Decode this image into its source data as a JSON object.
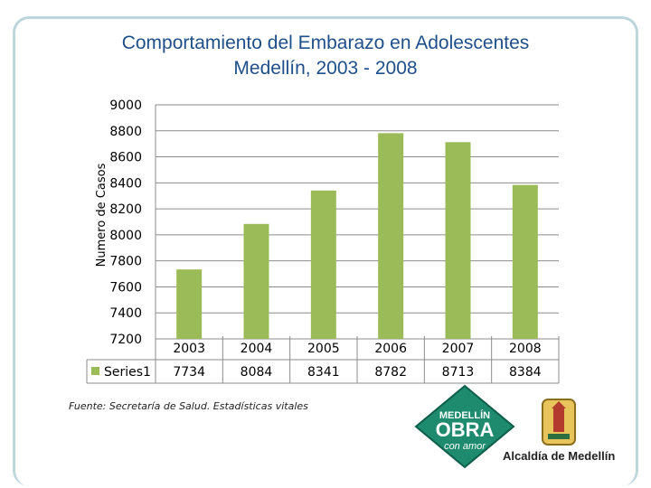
{
  "title_line1": "Comportamiento del Embarazo en Adolescentes",
  "title_line2": "Medellín, 2003 - 2008",
  "source_note": "Fuente: Secretaría de Salud. Estadísticas vitales",
  "logo_obra": {
    "line1": "MEDELLÍN",
    "line2": "OBRA",
    "line3": "con amor"
  },
  "logo_alcaldia": "Alcaldía de Medellín",
  "colors": {
    "bar": "#9bbb59",
    "title": "#1f4f8a",
    "frame": "#bcd6dc",
    "logo": "#1e8a6e"
  },
  "chart_data": {
    "type": "bar",
    "categories": [
      "2003",
      "2004",
      "2005",
      "2006",
      "2007",
      "2008"
    ],
    "series": [
      {
        "name": "Series1",
        "values": [
          7734,
          8084,
          8341,
          8782,
          8713,
          8384
        ]
      }
    ],
    "ylabel": "Numero de Casos",
    "ylim": [
      7200,
      9000
    ],
    "yticks": [
      "9000",
      "8800",
      "8600",
      "8400",
      "8200",
      "8000",
      "7800",
      "7600",
      "7400",
      "7200"
    ],
    "table": {
      "legend": "Series1",
      "values": [
        "7734",
        "8084",
        "8341",
        "8782",
        "8713",
        "8384"
      ]
    },
    "grid": true
  }
}
